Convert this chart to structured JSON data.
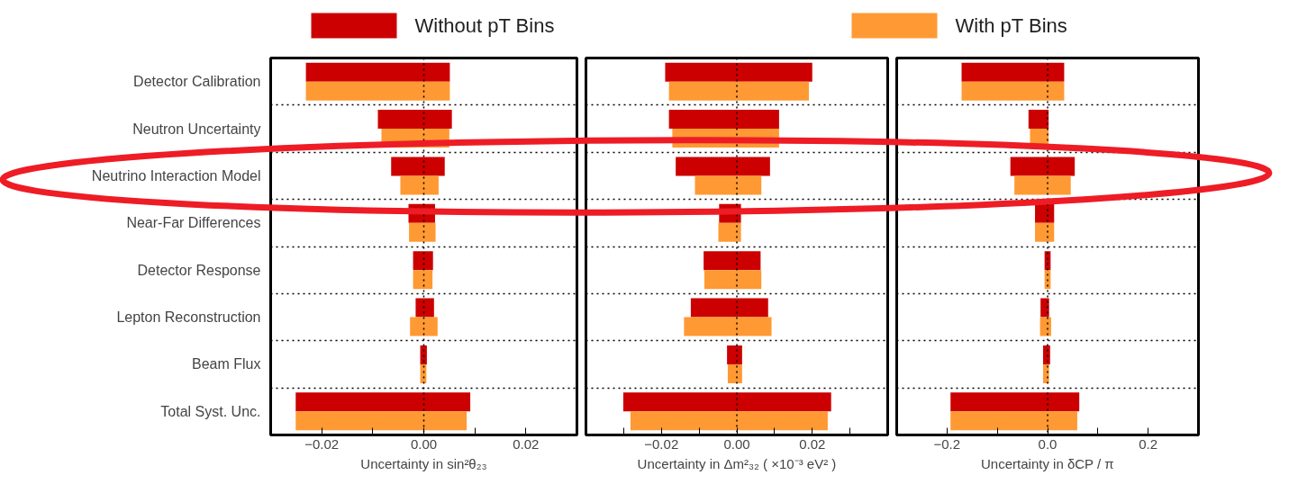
{
  "chart_data": [
    {
      "type": "bar",
      "orientation": "horizontal",
      "xlabel": "Uncertainty in sin²θ₂₃",
      "legend": "top",
      "grid": "y",
      "tick_labels": true,
      "categories": [
        "Detector Calibration",
        "Neutron Uncertainty",
        "Neutrino Interaction Model",
        "Near-Far Differences",
        "Detector Response",
        "Lepton Reconstruction",
        "Beam Flux",
        "Total Syst. Unc."
      ],
      "xlim": [
        -0.03,
        0.03
      ],
      "xticks": [
        {
          "value": -0.03,
          "label": null
        },
        {
          "value": -0.02,
          "label": "−0.02"
        },
        {
          "value": -0.01,
          "label": null
        },
        {
          "value": 0,
          "label": "0.00"
        },
        {
          "value": 0.01,
          "label": null
        },
        {
          "value": 0.02,
          "label": "0.02"
        },
        {
          "value": 0.03,
          "label": null
        }
      ],
      "ref_lines": [
        {
          "axis": "x",
          "value": 0,
          "label": null,
          "color": "#000000",
          "line_style": "dotted"
        }
      ],
      "series": [
        {
          "name": "Without pT Bins",
          "color": "#cc0000",
          "base": [
            -0.0231,
            -0.009,
            -0.0064,
            -0.003,
            -0.0021,
            -0.0016,
            -0.0007,
            -0.0251
          ],
          "values": [
            0.0282,
            0.0145,
            0.0105,
            0.0052,
            0.0039,
            0.0036,
            0.0013,
            0.0342
          ]
        },
        {
          "name": "With pT Bins",
          "color": "#ff9933",
          "base": [
            -0.0231,
            -0.0083,
            -0.0046,
            -0.0029,
            -0.0021,
            -0.0027,
            -0.0007,
            -0.0251
          ],
          "values": [
            0.0282,
            0.0133,
            0.0075,
            0.0052,
            0.0038,
            0.0054,
            0.0012,
            0.0335
          ]
        }
      ]
    },
    {
      "type": "bar",
      "orientation": "horizontal",
      "xlabel": "Uncertainty in Δm²₃₂ ( ×10⁻³ eV² )",
      "grid": "y",
      "tick_labels": "x",
      "categories": [
        null,
        null,
        null,
        null,
        null,
        null,
        null,
        null
      ],
      "xlim": [
        -0.04,
        0.04
      ],
      "xticks": [
        {
          "value": -0.03,
          "label": null
        },
        {
          "value": -0.02,
          "label": "−0.02"
        },
        {
          "value": -0.01,
          "label": null
        },
        {
          "value": 0,
          "label": "0.00"
        },
        {
          "value": 0.01,
          "label": null
        },
        {
          "value": 0.02,
          "label": "0.02"
        },
        {
          "value": 0.03,
          "label": null
        }
      ],
      "ref_lines": [
        {
          "axis": "x",
          "value": 0,
          "label": null,
          "color": "#000000",
          "line_style": "dotted"
        }
      ],
      "series": [
        {
          "color": "#cc0000",
          "base": [
            -0.019,
            -0.018,
            -0.0162,
            -0.0047,
            -0.0088,
            -0.0122,
            -0.0026,
            -0.0301
          ],
          "values": [
            0.039,
            0.0292,
            0.025,
            0.0058,
            0.0151,
            0.0205,
            0.004,
            0.0551
          ]
        },
        {
          "color": "#ff9933",
          "base": [
            -0.018,
            -0.0171,
            -0.0111,
            -0.0049,
            -0.0086,
            -0.014,
            -0.0024,
            -0.0282
          ],
          "values": [
            0.0371,
            0.0283,
            0.0176,
            0.006,
            0.0151,
            0.0232,
            0.0038,
            0.0523
          ]
        }
      ]
    },
    {
      "type": "bar",
      "orientation": "horizontal",
      "xlabel": "Uncertainty in δCP / π",
      "grid": "y",
      "tick_labels": "x",
      "categories": [
        null,
        null,
        null,
        null,
        null,
        null,
        null,
        null
      ],
      "xlim": [
        -0.3,
        0.3
      ],
      "xticks": [
        {
          "value": -0.3,
          "label": null
        },
        {
          "value": -0.2,
          "label": "−0.2"
        },
        {
          "value": -0.1,
          "label": null
        },
        {
          "value": 0,
          "label": "0.0"
        },
        {
          "value": 0.1,
          "label": null
        },
        {
          "value": 0.2,
          "label": "0.2"
        },
        {
          "value": 0.3,
          "label": null
        }
      ],
      "ref_lines": [
        {
          "axis": "x",
          "value": 0,
          "label": null,
          "color": "#000000",
          "line_style": "dotted"
        }
      ],
      "series": [
        {
          "color": "#cc0000",
          "base": [
            -0.171,
            -0.038,
            -0.074,
            -0.025,
            -0.006,
            -0.014,
            -0.009,
            -0.193
          ],
          "values": [
            0.204,
            0.04,
            0.128,
            0.038,
            0.012,
            0.017,
            0.014,
            0.256
          ]
        },
        {
          "color": "#ff9933",
          "base": [
            -0.171,
            -0.035,
            -0.066,
            -0.025,
            -0.006,
            -0.015,
            -0.009,
            -0.193
          ],
          "values": [
            0.204,
            0.037,
            0.112,
            0.038,
            0.012,
            0.022,
            0.012,
            0.252
          ]
        }
      ]
    }
  ]
}
